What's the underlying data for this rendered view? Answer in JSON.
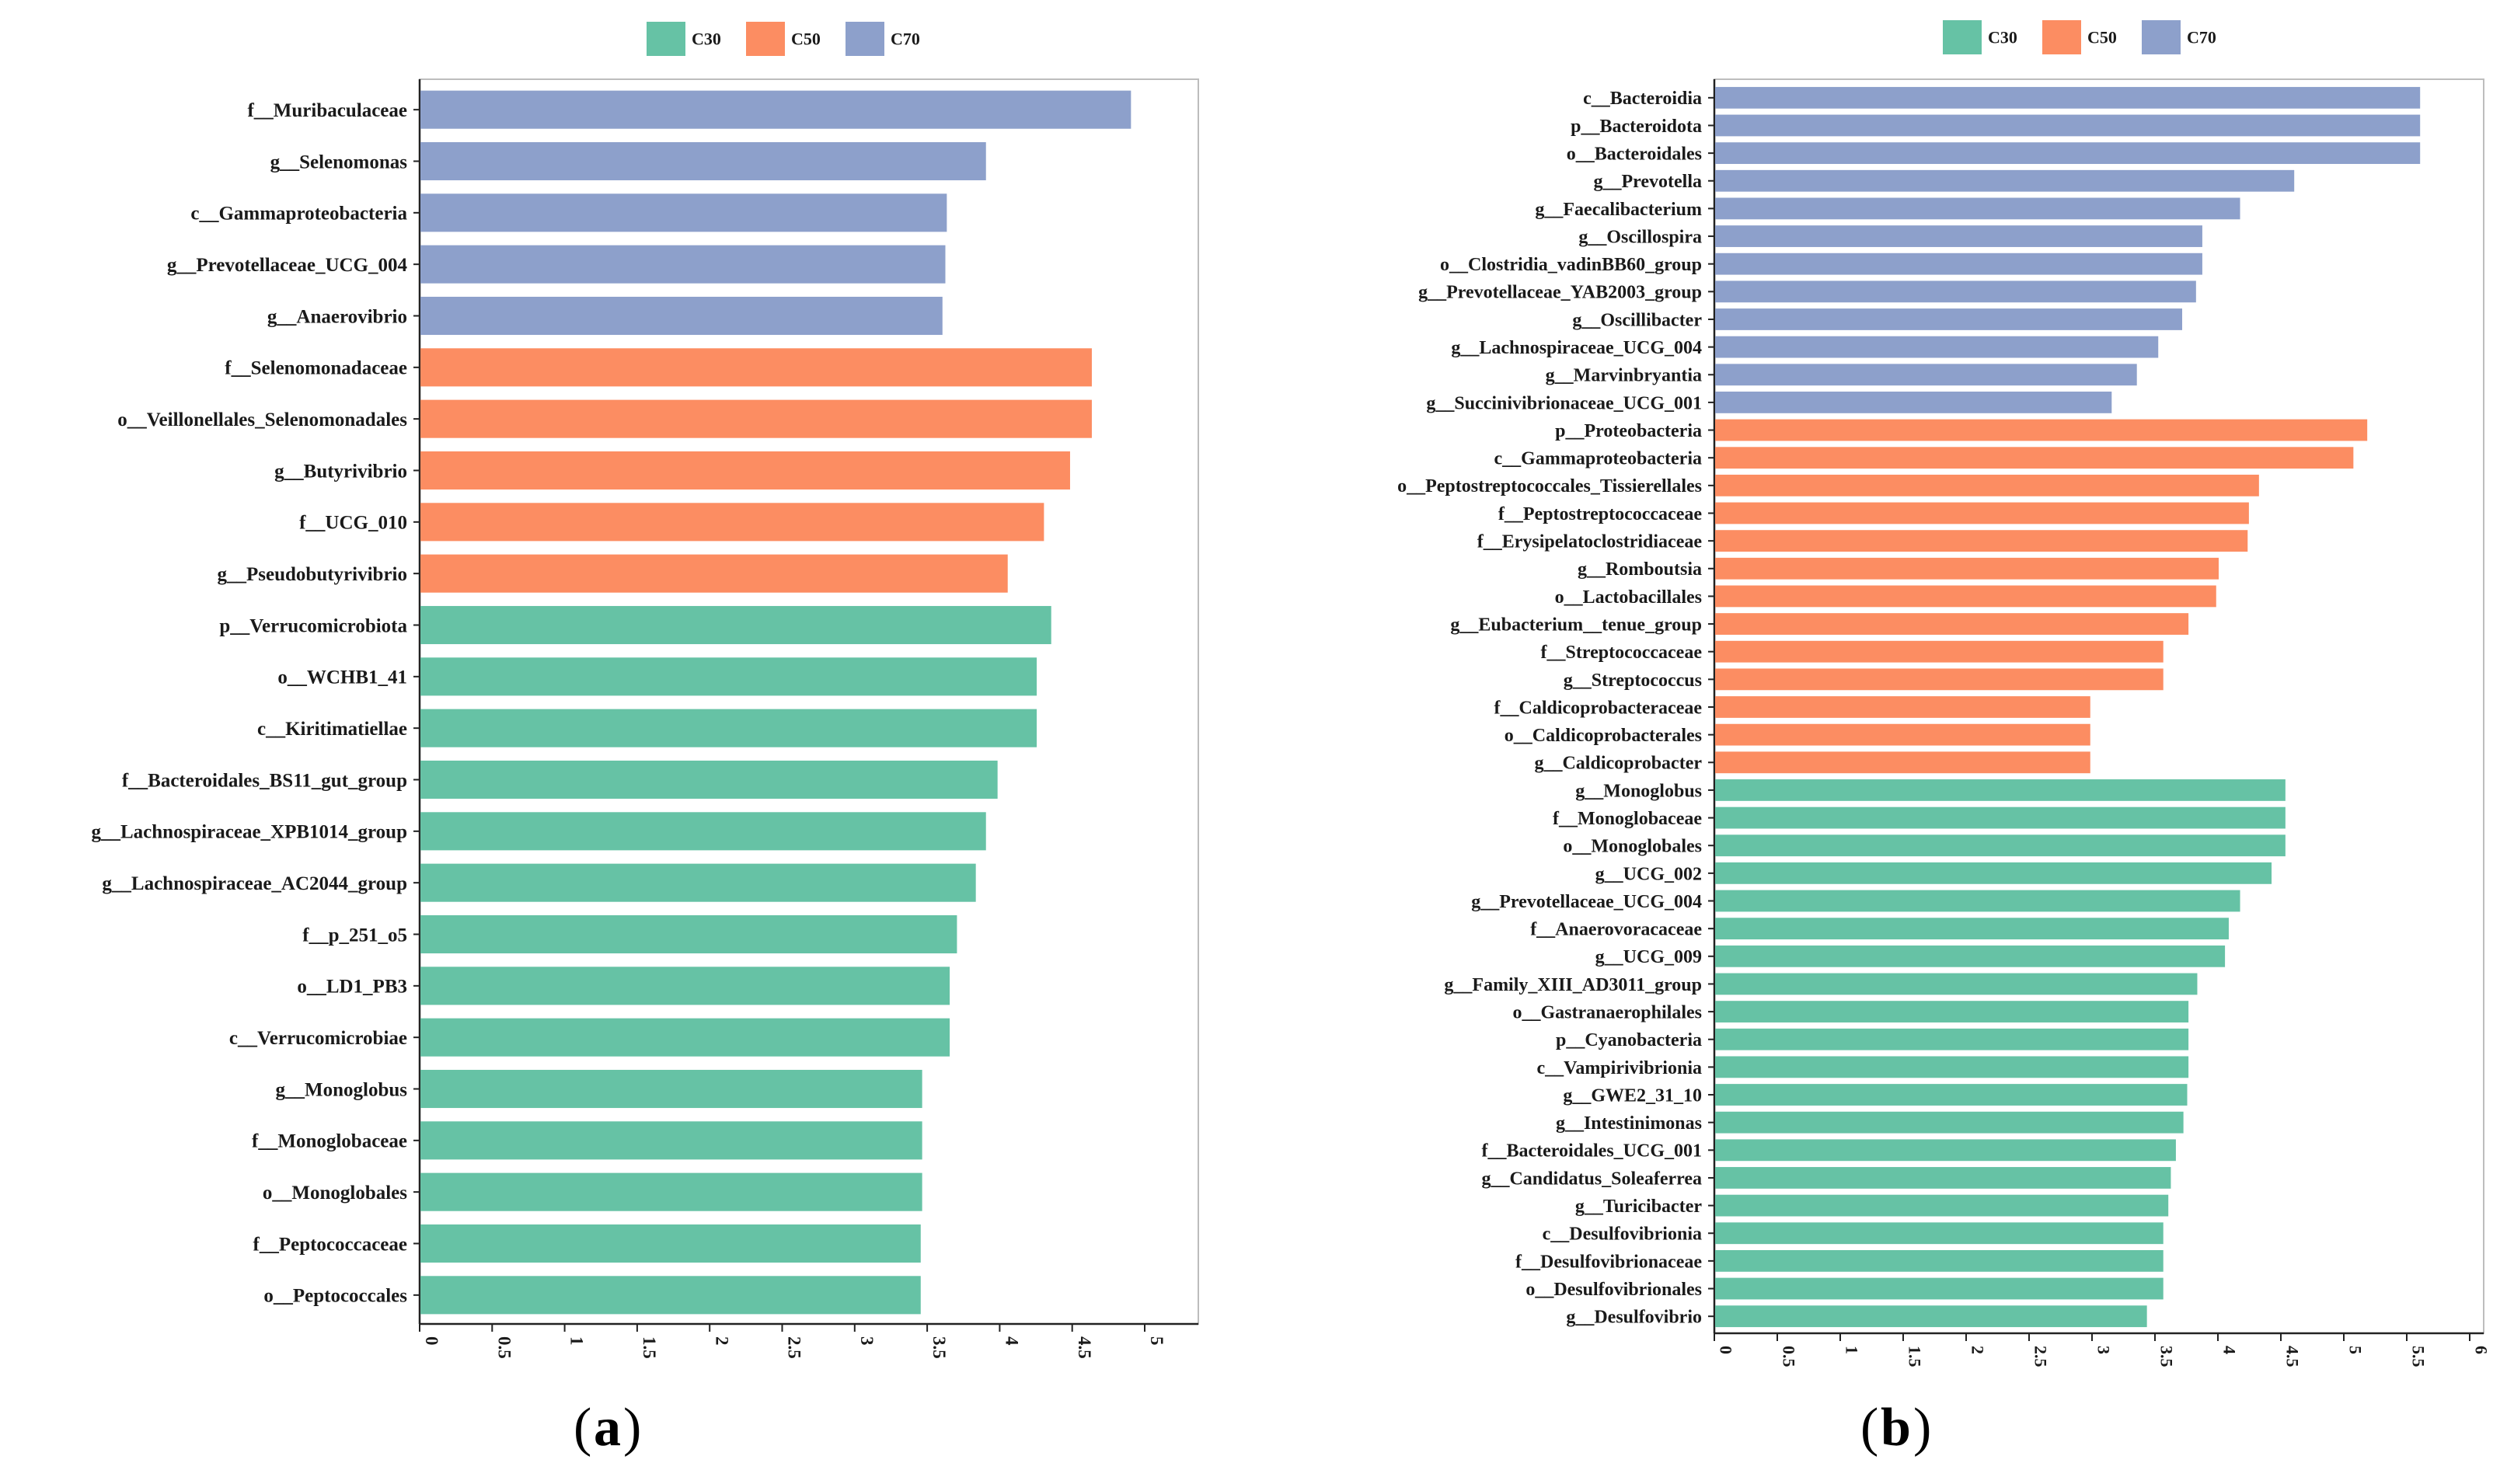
{
  "colors": {
    "C30": "#66c2a5",
    "C50": "#fc8d62",
    "C70": "#8da0cb"
  },
  "legend_labels": [
    "C30",
    "C50",
    "C70"
  ],
  "captions": {
    "a_letter": "a",
    "b_letter": "b",
    "open": "(",
    "close": ")"
  },
  "chart_data": [
    {
      "type": "bar",
      "orientation": "horizontal",
      "panel": "a",
      "xlim": [
        0,
        5.5
      ],
      "xticks": [
        "0",
        "0.5",
        "1",
        "1.5",
        "2",
        "2.5",
        "3",
        "3.5",
        "4",
        "4.5",
        "5"
      ],
      "xtick_values": [
        0,
        0.5,
        1,
        1.5,
        2,
        2.5,
        3,
        3.5,
        4,
        4.5,
        5
      ],
      "bars": [
        {
          "label": "f__Muribaculaceae",
          "value": 4.9,
          "group": "C70"
        },
        {
          "label": "g__Selenomonas",
          "value": 3.9,
          "group": "C70"
        },
        {
          "label": "c__Gammaproteobacteria",
          "value": 3.63,
          "group": "C70"
        },
        {
          "label": "g__Prevotellaceae_UCG_004",
          "value": 3.62,
          "group": "C70"
        },
        {
          "label": "g__Anaerovibrio",
          "value": 3.6,
          "group": "C70"
        },
        {
          "label": "f__Selenomonadaceae",
          "value": 4.63,
          "group": "C50"
        },
        {
          "label": "o__Veillonellales_Selenomonadales",
          "value": 4.63,
          "group": "C50"
        },
        {
          "label": "g__Butyrivibrio",
          "value": 4.48,
          "group": "C50"
        },
        {
          "label": "f__UCG_010",
          "value": 4.3,
          "group": "C50"
        },
        {
          "label": "g__Pseudobutyrivibrio",
          "value": 4.05,
          "group": "C50"
        },
        {
          "label": "p__Verrucomicrobiota",
          "value": 4.35,
          "group": "C30"
        },
        {
          "label": "o__WCHB1_41",
          "value": 4.25,
          "group": "C30"
        },
        {
          "label": "c__Kiritimatiellae",
          "value": 4.25,
          "group": "C30"
        },
        {
          "label": "f__Bacteroidales_BS11_gut_group",
          "value": 3.98,
          "group": "C30"
        },
        {
          "label": "g__Lachnospiraceae_XPB1014_group",
          "value": 3.9,
          "group": "C30"
        },
        {
          "label": "g__Lachnospiraceae_AC2044_group",
          "value": 3.83,
          "group": "C30"
        },
        {
          "label": "f__p_251_o5",
          "value": 3.7,
          "group": "C30"
        },
        {
          "label": "o__LD1_PB3",
          "value": 3.65,
          "group": "C30"
        },
        {
          "label": "c__Verrucomicrobiae",
          "value": 3.65,
          "group": "C30"
        },
        {
          "label": "g__Monoglobus",
          "value": 3.46,
          "group": "C30"
        },
        {
          "label": "f__Monoglobaceae",
          "value": 3.46,
          "group": "C30"
        },
        {
          "label": "o__Monoglobales",
          "value": 3.46,
          "group": "C30"
        },
        {
          "label": "f__Peptococcaceae",
          "value": 3.45,
          "group": "C30"
        },
        {
          "label": "o__Peptococcales",
          "value": 3.45,
          "group": "C30"
        }
      ]
    },
    {
      "type": "bar",
      "orientation": "horizontal",
      "panel": "b",
      "xlim": [
        0,
        6.1
      ],
      "xticks": [
        "0",
        "0.5",
        "1",
        "1.5",
        "2",
        "2.5",
        "3",
        "3.5",
        "4",
        "4.5",
        "5",
        "5.5",
        "6"
      ],
      "xtick_values": [
        0,
        0.5,
        1,
        1.5,
        2,
        2.5,
        3,
        3.5,
        4,
        4.5,
        5,
        5.5,
        6
      ],
      "bars": [
        {
          "label": "c__Bacteroidia",
          "value": 5.6,
          "group": "C70"
        },
        {
          "label": "p__Bacteroidota",
          "value": 5.6,
          "group": "C70"
        },
        {
          "label": "o__Bacteroidales",
          "value": 5.6,
          "group": "C70"
        },
        {
          "label": "g__Prevotella",
          "value": 4.6,
          "group": "C70"
        },
        {
          "label": "g__Faecalibacterium",
          "value": 4.17,
          "group": "C70"
        },
        {
          "label": "g__Oscillospira",
          "value": 3.87,
          "group": "C70"
        },
        {
          "label": "o__Clostridia_vadinBB60_group",
          "value": 3.87,
          "group": "C70"
        },
        {
          "label": "g__Prevotellaceae_YAB2003_group",
          "value": 3.82,
          "group": "C70"
        },
        {
          "label": "g__Oscillibacter",
          "value": 3.71,
          "group": "C70"
        },
        {
          "label": "g__Lachnospiraceae_UCG_004",
          "value": 3.52,
          "group": "C70"
        },
        {
          "label": "g__Marvinbryantia",
          "value": 3.35,
          "group": "C70"
        },
        {
          "label": "g__Succinivibrionaceae_UCG_001",
          "value": 3.15,
          "group": "C70"
        },
        {
          "label": "p__Proteobacteria",
          "value": 5.18,
          "group": "C50"
        },
        {
          "label": "c__Gammaproteobacteria",
          "value": 5.07,
          "group": "C50"
        },
        {
          "label": "o__Peptostreptococcales_Tissierellales",
          "value": 4.32,
          "group": "C50"
        },
        {
          "label": "f__Peptostreptococcaceae",
          "value": 4.24,
          "group": "C50"
        },
        {
          "label": "f__Erysipelatoclostridiaceae",
          "value": 4.23,
          "group": "C50"
        },
        {
          "label": "g__Romboutsia",
          "value": 4.0,
          "group": "C50"
        },
        {
          "label": "o__Lactobacillales",
          "value": 3.98,
          "group": "C50"
        },
        {
          "label": "g__Eubacterium__tenue_group",
          "value": 3.76,
          "group": "C50"
        },
        {
          "label": "f__Streptococcaceae",
          "value": 3.56,
          "group": "C50"
        },
        {
          "label": "g__Streptococcus",
          "value": 3.56,
          "group": "C50"
        },
        {
          "label": "f__Caldicoprobacteraceae",
          "value": 2.98,
          "group": "C50"
        },
        {
          "label": "o__Caldicoprobacterales",
          "value": 2.98,
          "group": "C50"
        },
        {
          "label": "g__Caldicoprobacter",
          "value": 2.98,
          "group": "C50"
        },
        {
          "label": "g__Monoglobus",
          "value": 4.53,
          "group": "C30"
        },
        {
          "label": "f__Monoglobaceae",
          "value": 4.53,
          "group": "C30"
        },
        {
          "label": "o__Monoglobales",
          "value": 4.53,
          "group": "C30"
        },
        {
          "label": "g__UCG_002",
          "value": 4.42,
          "group": "C30"
        },
        {
          "label": "g__Prevotellaceae_UCG_004",
          "value": 4.17,
          "group": "C30"
        },
        {
          "label": "f__Anaerovoracaceae",
          "value": 4.08,
          "group": "C30"
        },
        {
          "label": "g__UCG_009",
          "value": 4.05,
          "group": "C30"
        },
        {
          "label": "g__Family_XIII_AD3011_group",
          "value": 3.83,
          "group": "C30"
        },
        {
          "label": "o__Gastranaerophilales",
          "value": 3.76,
          "group": "C30"
        },
        {
          "label": "p__Cyanobacteria",
          "value": 3.76,
          "group": "C30"
        },
        {
          "label": "c__Vampirivibrionia",
          "value": 3.76,
          "group": "C30"
        },
        {
          "label": "g__GWE2_31_10",
          "value": 3.75,
          "group": "C30"
        },
        {
          "label": "g__Intestinimonas",
          "value": 3.72,
          "group": "C30"
        },
        {
          "label": "f__Bacteroidales_UCG_001",
          "value": 3.66,
          "group": "C30"
        },
        {
          "label": "g__Candidatus_Soleaferrea",
          "value": 3.62,
          "group": "C30"
        },
        {
          "label": "g__Turicibacter",
          "value": 3.6,
          "group": "C30"
        },
        {
          "label": "c__Desulfovibrionia",
          "value": 3.56,
          "group": "C30"
        },
        {
          "label": "f__Desulfovibrionaceae",
          "value": 3.56,
          "group": "C30"
        },
        {
          "label": "o__Desulfovibrionales",
          "value": 3.56,
          "group": "C30"
        },
        {
          "label": "g__Desulfovibrio",
          "value": 3.43,
          "group": "C30"
        }
      ]
    }
  ]
}
